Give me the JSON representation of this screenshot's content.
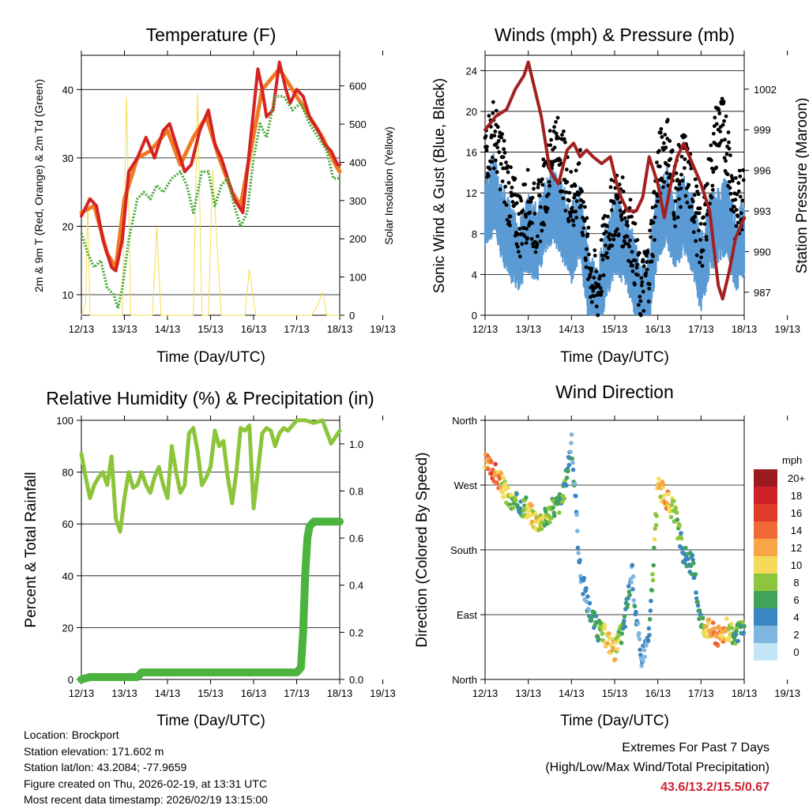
{
  "x_ticks": [
    "12/13",
    "13/13",
    "14/13",
    "15/13",
    "16/13",
    "17/13",
    "18/13",
    "19/13"
  ],
  "xlabel": "Time (Day/UTC)",
  "charts": {
    "temperature": {
      "title": "Temperature (F)",
      "ylabel": "2m & 9m T (Red, Orange) & 2m Td (Green)",
      "ylabel_right": "Solar Insolation (Yellow)",
      "y_ticks": [
        "10",
        "20",
        "30",
        "40"
      ],
      "y2_ticks": [
        "0",
        "100",
        "200",
        "300",
        "400",
        "500",
        "600"
      ]
    },
    "winds": {
      "title": "Winds (mph) & Pressure (mb)",
      "ylabel": "Sonic Wind & Gust (Blue, Black)",
      "ylabel_right": "Station Pressure (Maroon)",
      "y_ticks": [
        "0",
        "4",
        "8",
        "12",
        "16",
        "20",
        "24"
      ],
      "y2_ticks": [
        "987",
        "990",
        "993",
        "996",
        "999",
        "1002"
      ]
    },
    "humidity": {
      "title": "Relative Humidity (%) & Precipitation (in)",
      "ylabel": "Percent & Total Rainfall",
      "y_ticks": [
        "0",
        "20",
        "40",
        "60",
        "80",
        "100"
      ],
      "y2_ticks": [
        "0.0",
        "0.2",
        "0.4",
        "0.6",
        "0.8",
        "1.0"
      ]
    },
    "direction": {
      "title": "Wind Direction",
      "ylabel": "Direction (Colored By Speed)",
      "y_ticks": [
        "North",
        "East",
        "South",
        "West",
        "North"
      ],
      "legend_title": "mph",
      "legend_labels": [
        "20+",
        "18",
        "16",
        "14",
        "12",
        "10",
        "8",
        "6",
        "4",
        "2",
        "0"
      ],
      "legend_colors": [
        "#9b1b1e",
        "#cc2228",
        "#e03a2b",
        "#f06a35",
        "#f7a647",
        "#f4dc5a",
        "#8cc63e",
        "#41a35a",
        "#3a86c2",
        "#7eb6e0",
        "#c4e4f7"
      ]
    }
  },
  "chart_data": [
    {
      "type": "line",
      "title": "Temperature (F)",
      "x_range": [
        0,
        6
      ],
      "ylim": [
        7,
        45
      ],
      "y2lim": [
        0,
        680
      ],
      "series": [
        {
          "name": "2m T",
          "color": "#d42323",
          "x": [
            0,
            0.2,
            0.35,
            0.5,
            0.7,
            0.8,
            0.95,
            1.1,
            1.3,
            1.5,
            1.7,
            1.9,
            2.05,
            2.25,
            2.4,
            2.55,
            2.75,
            2.95,
            3.1,
            3.25,
            3.4,
            3.55,
            3.75,
            3.9,
            4.0,
            4.1,
            4.2,
            4.3,
            4.45,
            4.6,
            4.75,
            4.85,
            5.0,
            5.15,
            5.3,
            5.5,
            5.65,
            5.8,
            5.95,
            6.0
          ],
          "y": [
            21.5,
            24,
            23,
            18,
            14,
            13.5,
            18,
            28,
            30,
            33,
            30,
            34,
            35,
            31,
            28,
            29,
            34,
            37,
            32,
            30,
            27,
            24,
            22,
            31,
            37,
            43,
            40,
            36,
            37,
            44,
            40,
            38,
            40,
            39,
            36,
            34,
            32,
            31,
            29,
            29
          ]
        },
        {
          "name": "9m T",
          "color": "#f07a22",
          "x": [
            0,
            0.3,
            0.6,
            0.8,
            1.0,
            1.3,
            1.6,
            2.0,
            2.3,
            2.6,
            2.9,
            3.2,
            3.5,
            3.7,
            3.9,
            4.2,
            4.6,
            5.0,
            5.3,
            5.6,
            5.9,
            6.0
          ],
          "y": [
            22,
            23,
            16,
            14,
            24,
            30,
            31,
            34,
            29,
            33,
            36,
            30,
            25,
            23,
            30,
            40,
            43,
            39,
            36,
            33,
            29,
            28
          ]
        },
        {
          "name": "2m Td",
          "color": "#4aa83a",
          "x": [
            0,
            0.15,
            0.3,
            0.45,
            0.6,
            0.75,
            0.85,
            0.95,
            1.1,
            1.3,
            1.45,
            1.6,
            1.75,
            1.9,
            2.1,
            2.3,
            2.45,
            2.6,
            2.8,
            2.95,
            3.1,
            3.25,
            3.4,
            3.55,
            3.7,
            3.85,
            4.0,
            4.15,
            4.3,
            4.5,
            4.7,
            4.9,
            5.1,
            5.3,
            5.5,
            5.7,
            5.85,
            6.0
          ],
          "y": [
            19,
            16,
            14,
            15,
            11,
            10,
            8,
            11,
            18,
            24,
            25,
            24,
            26,
            25,
            27,
            28,
            26,
            22,
            28,
            28,
            23,
            26,
            27,
            23,
            20,
            22,
            30,
            35,
            33,
            39,
            39,
            37,
            38,
            35,
            33,
            31,
            27,
            27
          ]
        },
        {
          "name": "Solar Insolation",
          "axis": "right",
          "color": "#f5dc4a",
          "x": [
            0,
            0.1,
            0.15,
            0.2,
            0.3,
            0.45,
            0.55,
            0.6,
            0.75,
            0.85,
            0.95,
            1.05,
            1.15,
            1.25,
            1.5,
            1.65,
            1.75,
            1.85,
            1.95,
            2.5,
            2.6,
            2.7,
            2.8,
            2.85,
            2.95,
            3.05,
            3.25,
            3.4,
            3.6,
            3.7,
            3.8,
            3.9,
            4.05,
            4.1,
            4.2,
            4.35,
            4.5,
            4.65,
            4.8,
            4.9,
            5.05,
            5.2,
            5.35,
            5.5,
            5.6,
            5.7,
            5.8,
            5.9,
            6.0
          ],
          "y": [
            0,
            30,
            310,
            0,
            0,
            0,
            0,
            0,
            0,
            0,
            0,
            570,
            0,
            0,
            0,
            0,
            230,
            0,
            0,
            0,
            0,
            580,
            0,
            0,
            0,
            380,
            0,
            0,
            0,
            0,
            0,
            120,
            0,
            0,
            0,
            0,
            0,
            0,
            0,
            0,
            0,
            0,
            0,
            30,
            60,
            0,
            0,
            0,
            0
          ]
        }
      ]
    },
    {
      "type": "scatter",
      "title": "Winds (mph) & Pressure (mb)",
      "x_range": [
        0,
        6
      ],
      "ylim": [
        0,
        25.5
      ],
      "y2lim": [
        985.3,
        1004.5
      ],
      "series": [
        {
          "name": "Sonic Wind",
          "color": "#5b9bd5",
          "x": [
            0,
            0.2,
            0.4,
            0.6,
            0.8,
            1.0,
            1.2,
            1.4,
            1.6,
            1.8,
            2.0,
            2.2,
            2.4,
            2.6,
            2.8,
            3.0,
            3.2,
            3.4,
            3.6,
            3.8,
            4.0,
            4.2,
            4.4,
            4.6,
            4.8,
            5.0,
            5.2,
            5.4,
            5.6,
            5.8,
            6.0
          ],
          "y": [
            10,
            12,
            9,
            7,
            6,
            8,
            7,
            10,
            11,
            9,
            7,
            9,
            3,
            1,
            5,
            8,
            7,
            5,
            1,
            3,
            9,
            11,
            8,
            10,
            8,
            4,
            8,
            9,
            10,
            6,
            8
          ]
        },
        {
          "name": "Gust",
          "color": "#000000",
          "x": [
            0,
            0.2,
            0.4,
            0.6,
            0.8,
            1.0,
            1.2,
            1.4,
            1.6,
            1.8,
            2.0,
            2.2,
            2.4,
            2.6,
            2.8,
            3.0,
            3.2,
            3.4,
            3.6,
            3.8,
            4.0,
            4.2,
            4.4,
            4.6,
            4.8,
            5.0,
            5.2,
            5.4,
            5.6,
            5.8,
            6.0
          ],
          "y": [
            16,
            18,
            15,
            11,
            9,
            11,
            9,
            13,
            17,
            15,
            11,
            13,
            5,
            2,
            8,
            11,
            10,
            8,
            2,
            5,
            14,
            17,
            12,
            15,
            12,
            7,
            13,
            19,
            17,
            10,
            12
          ]
        },
        {
          "name": "Station Pressure",
          "axis": "right",
          "color": "#a32020",
          "x": [
            0,
            0.25,
            0.5,
            0.7,
            0.9,
            1.0,
            1.15,
            1.3,
            1.5,
            1.7,
            1.9,
            2.05,
            2.2,
            2.35,
            2.5,
            2.7,
            2.9,
            3.05,
            3.15,
            3.3,
            3.5,
            3.65,
            3.8,
            4.0,
            4.15,
            4.3,
            4.45,
            4.6,
            4.8,
            5.0,
            5.2,
            5.4,
            5.5,
            5.65,
            5.8,
            6.0
          ],
          "y": [
            999,
            1000,
            1000.5,
            1002,
            1003,
            1004,
            1002,
            1000,
            996,
            995,
            997.5,
            998,
            997,
            997.5,
            997,
            996.5,
            997,
            995,
            994,
            993,
            993,
            994,
            997,
            995,
            992.5,
            995,
            997,
            998,
            996.5,
            995,
            993,
            987.5,
            986.5,
            988.5,
            991,
            992.5
          ]
        }
      ]
    },
    {
      "type": "line",
      "title": "Relative Humidity (%) & Precipitation (in)",
      "x_range": [
        0,
        6
      ],
      "ylim": [
        0,
        100
      ],
      "y2lim": [
        0,
        1.1
      ],
      "series": [
        {
          "name": "Relative Humidity",
          "color": "#8cc43a",
          "x": [
            0,
            0.1,
            0.2,
            0.3,
            0.4,
            0.5,
            0.6,
            0.7,
            0.8,
            0.9,
            1.0,
            1.1,
            1.2,
            1.3,
            1.4,
            1.5,
            1.6,
            1.7,
            1.8,
            1.9,
            2.0,
            2.1,
            2.2,
            2.3,
            2.4,
            2.5,
            2.6,
            2.7,
            2.8,
            2.9,
            3.0,
            3.1,
            3.2,
            3.3,
            3.4,
            3.5,
            3.6,
            3.7,
            3.8,
            3.9,
            4.0,
            4.1,
            4.2,
            4.3,
            4.4,
            4.5,
            4.6,
            4.7,
            4.8,
            4.9,
            5.0,
            5.2,
            5.4,
            5.6,
            5.8,
            6.0
          ],
          "y": [
            87,
            78,
            70,
            75,
            78,
            80,
            75,
            86,
            62,
            57,
            70,
            80,
            74,
            75,
            80,
            75,
            72,
            78,
            82,
            75,
            70,
            90,
            80,
            72,
            75,
            95,
            97,
            88,
            75,
            78,
            82,
            96,
            90,
            92,
            78,
            68,
            80,
            97,
            96,
            98,
            66,
            80,
            95,
            97,
            96,
            90,
            95,
            97,
            96,
            98,
            100,
            100,
            99,
            100,
            91,
            96
          ]
        },
        {
          "name": "Total Precipitation",
          "axis": "right",
          "color": "#4cb43e",
          "x": [
            0,
            0.2,
            0.5,
            1.0,
            1.3,
            1.4,
            1.5,
            2.0,
            3.0,
            4.0,
            5.0,
            5.1,
            5.15,
            5.2,
            5.25,
            5.3,
            5.4,
            5.6,
            6.0
          ],
          "y": [
            0.0,
            0.01,
            0.01,
            0.01,
            0.01,
            0.03,
            0.03,
            0.03,
            0.03,
            0.03,
            0.03,
            0.05,
            0.2,
            0.45,
            0.6,
            0.65,
            0.67,
            0.67,
            0.67
          ]
        }
      ]
    },
    {
      "type": "scatter",
      "title": "Wind Direction",
      "x_range": [
        0,
        6
      ],
      "ylim": [
        0,
        360
      ],
      "y_tick_labels": [
        "North",
        "East",
        "South",
        "West",
        "North"
      ],
      "series": [
        {
          "name": "Direction",
          "x": [
            0,
            0.2,
            0.4,
            0.6,
            0.8,
            1.0,
            1.2,
            1.4,
            1.6,
            1.8,
            2.0,
            2.2,
            2.4,
            2.6,
            2.8,
            3.0,
            3.2,
            3.4,
            3.6,
            3.8,
            4.0,
            4.2,
            4.4,
            4.6,
            4.8,
            5.0,
            5.2,
            5.4,
            5.6,
            5.8,
            6.0
          ],
          "y": [
            300,
            290,
            270,
            245,
            245,
            235,
            220,
            225,
            240,
            250,
            330,
            150,
            100,
            70,
            60,
            40,
            70,
            150,
            30,
            60,
            270,
            250,
            230,
            170,
            160,
            80,
            70,
            60,
            70,
            60,
            70
          ],
          "speed": [
            12,
            15,
            10,
            8,
            6,
            9,
            10,
            8,
            7,
            6,
            4,
            3,
            4,
            5,
            10,
            11,
            6,
            4,
            3,
            3,
            10,
            12,
            8,
            5,
            4,
            6,
            13,
            14,
            10,
            6,
            6
          ]
        }
      ]
    }
  ],
  "info": {
    "location": "Location: Brockport",
    "elevation": "Station elevation: 171.602 m",
    "latlon": "Station lat/lon: 43.2084; -77.9659",
    "created": "Figure created on Thu, 2026-02-19, at 13:31 UTC",
    "recent": "Most recent data timestamp: 2026/02/19 13:15:00"
  },
  "extremes": {
    "title": "Extremes For Past 7 Days",
    "subtitle": "(High/Low/Max Wind/Total Precipitation)",
    "values": "43.6/13.2/15.5/0.67"
  }
}
